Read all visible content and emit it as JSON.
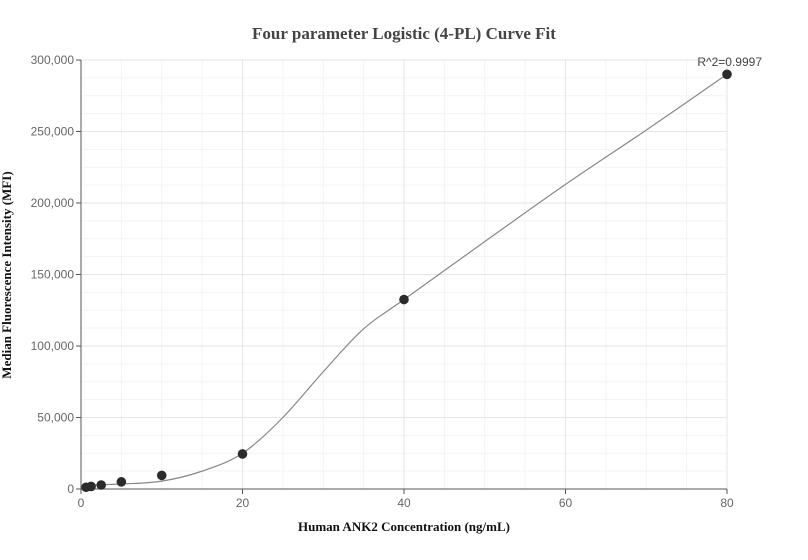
{
  "chart_data": {
    "type": "scatter",
    "title": "Four parameter Logistic (4-PL) Curve Fit",
    "xlabel": "Human ANK2 Concentration (ng/mL)",
    "ylabel": "Median Fluorescence Intensity (MFI)",
    "xlim": [
      0,
      80
    ],
    "ylim": [
      0,
      300000
    ],
    "x_ticks": [
      0,
      20,
      40,
      60,
      80
    ],
    "x_tick_labels": [
      "0",
      "20",
      "40",
      "60",
      "80"
    ],
    "y_ticks": [
      0,
      50000,
      100000,
      150000,
      200000,
      250000,
      300000
    ],
    "y_tick_labels": [
      "0",
      "50,000",
      "100,000",
      "150,000",
      "200,000",
      "250,000",
      "300,000"
    ],
    "grid": true,
    "annotation": "R^2=0.9997",
    "series": [
      {
        "points": [
          {
            "x": 0.625,
            "y": 1200
          },
          {
            "x": 1.25,
            "y": 1800
          },
          {
            "x": 2.5,
            "y": 2800
          },
          {
            "x": 5,
            "y": 5000
          },
          {
            "x": 10,
            "y": 9500
          },
          {
            "x": 20,
            "y": 24500
          },
          {
            "x": 40,
            "y": 132500
          },
          {
            "x": 80,
            "y": 290000
          }
        ]
      }
    ],
    "fit_curve": [
      {
        "x": 0,
        "y": 2500
      },
      {
        "x": 5,
        "y": 3500
      },
      {
        "x": 10,
        "y": 5500
      },
      {
        "x": 15,
        "y": 12500
      },
      {
        "x": 20,
        "y": 25000
      },
      {
        "x": 25,
        "y": 50000
      },
      {
        "x": 30,
        "y": 82000
      },
      {
        "x": 35,
        "y": 112000
      },
      {
        "x": 40,
        "y": 132500
      },
      {
        "x": 50,
        "y": 173000
      },
      {
        "x": 60,
        "y": 213000
      },
      {
        "x": 70,
        "y": 251000
      },
      {
        "x": 80,
        "y": 290000
      }
    ]
  }
}
